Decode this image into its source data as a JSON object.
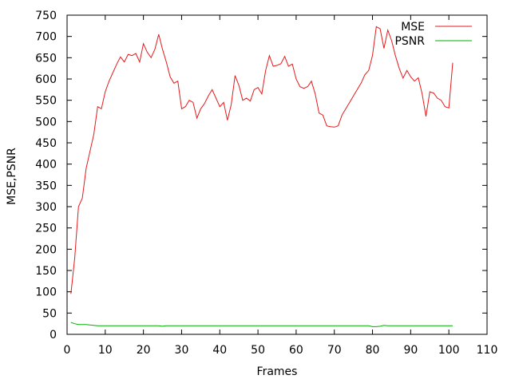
{
  "chart_data": {
    "type": "line",
    "title": "",
    "xlabel": "Frames",
    "ylabel": "MSE,PSNR",
    "xlim": [
      0,
      110
    ],
    "ylim": [
      0,
      750
    ],
    "xticks": [
      0,
      10,
      20,
      30,
      40,
      50,
      60,
      70,
      80,
      90,
      100,
      110
    ],
    "yticks": [
      0,
      50,
      100,
      150,
      200,
      250,
      300,
      350,
      400,
      450,
      500,
      550,
      600,
      650,
      700,
      750
    ],
    "grid": false,
    "legend_position": "top-right",
    "series": [
      {
        "name": "MSE",
        "color": "#e41a1c",
        "x": [
          1,
          2,
          3,
          4,
          5,
          6,
          7,
          8,
          9,
          10,
          11,
          12,
          13,
          14,
          15,
          16,
          17,
          18,
          19,
          20,
          21,
          22,
          23,
          24,
          25,
          26,
          27,
          28,
          29,
          30,
          31,
          32,
          33,
          34,
          35,
          36,
          37,
          38,
          39,
          40,
          41,
          42,
          43,
          44,
          45,
          46,
          47,
          48,
          49,
          50,
          51,
          52,
          53,
          54,
          55,
          56,
          57,
          58,
          59,
          60,
          61,
          62,
          63,
          64,
          65,
          66,
          67,
          68,
          69,
          70,
          71,
          72,
          73,
          74,
          75,
          76,
          77,
          78,
          79,
          80,
          81,
          82,
          83,
          84,
          85,
          86,
          87,
          88,
          89,
          90,
          91,
          92,
          93,
          94,
          95,
          96,
          97,
          98,
          99,
          100,
          101
        ],
        "y": [
          95,
          180,
          300,
          320,
          390,
          430,
          470,
          535,
          530,
          570,
          595,
          615,
          635,
          652,
          640,
          658,
          655,
          660,
          640,
          683,
          663,
          650,
          670,
          705,
          670,
          640,
          605,
          590,
          595,
          530,
          535,
          550,
          545,
          508,
          530,
          542,
          560,
          575,
          555,
          535,
          545,
          503,
          540,
          608,
          585,
          550,
          555,
          548,
          575,
          580,
          565,
          620,
          655,
          630,
          632,
          636,
          653,
          630,
          635,
          600,
          582,
          578,
          582,
          595,
          565,
          520,
          515,
          490,
          488,
          487,
          490,
          515,
          530,
          545,
          560,
          575,
          590,
          610,
          620,
          655,
          723,
          718,
          672,
          715,
          690,
          655,
          625,
          602,
          620,
          605,
          595,
          603,
          565,
          512,
          570,
          567,
          555,
          550,
          535,
          532,
          638
        ]
      },
      {
        "name": "PSNR",
        "color": "#00b000",
        "x": [
          1,
          2,
          3,
          4,
          5,
          6,
          7,
          8,
          9,
          10,
          11,
          12,
          13,
          14,
          15,
          16,
          17,
          18,
          19,
          20,
          21,
          22,
          23,
          24,
          25,
          26,
          27,
          28,
          29,
          30,
          35,
          40,
          45,
          50,
          55,
          60,
          65,
          70,
          75,
          79,
          80,
          81,
          82,
          83,
          84,
          85,
          90,
          95,
          100,
          101
        ],
        "y": [
          28,
          25,
          23,
          23,
          23,
          22,
          21,
          20,
          20,
          20,
          20,
          20,
          20,
          20,
          20,
          20,
          20,
          20,
          20,
          20,
          20,
          20,
          20,
          20,
          19,
          20,
          20,
          20,
          20,
          20,
          20,
          20,
          20,
          20,
          20,
          20,
          20,
          20,
          20,
          20,
          18,
          18,
          19,
          21,
          20,
          20,
          20,
          20,
          20,
          20
        ]
      }
    ]
  }
}
